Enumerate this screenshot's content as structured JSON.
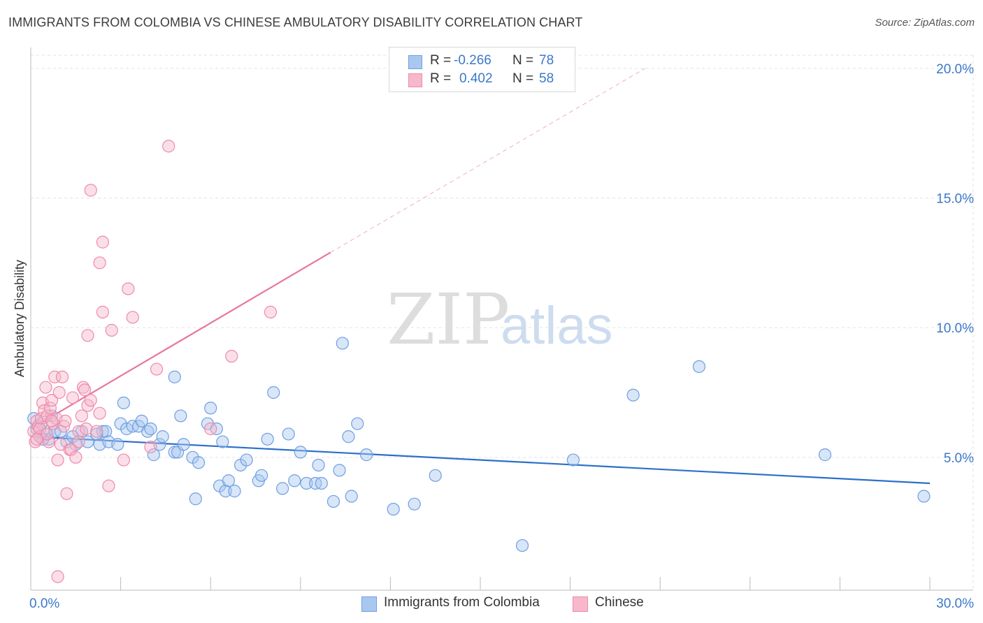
{
  "title": "IMMIGRANTS FROM COLOMBIA VS CHINESE AMBULATORY DISABILITY CORRELATION CHART",
  "source": "Source: ZipAtlas.com",
  "watermark": {
    "zip": "ZIP",
    "atlas": "atlas"
  },
  "legend": {
    "rows": [
      {
        "r_label": "R =",
        "r_value": "-0.266",
        "n_label": "N =",
        "n_value": "78",
        "color": "#a9c8f0",
        "stroke": "#6f9fe0"
      },
      {
        "r_label": "R =",
        "r_value": "0.402",
        "n_label": "N =",
        "n_value": "58",
        "color": "#f7b8cb",
        "stroke": "#ee8aa8"
      }
    ]
  },
  "bottom_legend": [
    {
      "label": "Immigrants from Colombia",
      "color": "#a9c8f0",
      "stroke": "#6f9fe0"
    },
    {
      "label": "Chinese",
      "color": "#f7b8cb",
      "stroke": "#ee8aa8"
    }
  ],
  "chart_data": {
    "type": "scatter",
    "xlabel": "",
    "ylabel": "Ambulatory Disability",
    "xlim": [
      0,
      30
    ],
    "ylim": [
      0,
      20.5
    ],
    "x_tick_labels": [
      {
        "value": 0,
        "label": "0.0%"
      },
      {
        "value": 30,
        "label": "30.0%"
      }
    ],
    "y_tick_labels": [
      {
        "value": 5,
        "label": "5.0%"
      },
      {
        "value": 10,
        "label": "10.0%"
      },
      {
        "value": 15,
        "label": "15.0%"
      },
      {
        "value": 20,
        "label": "20.0%"
      }
    ],
    "x_minor_ticks": [
      3,
      6,
      9,
      12,
      15,
      18,
      21,
      24,
      27,
      30
    ],
    "grid": true,
    "series": [
      {
        "name": "Immigrants from Colombia",
        "color": "#a9c8f0",
        "stroke": "#6f9fe0",
        "trend": {
          "x": [
            0,
            30
          ],
          "y": [
            5.8,
            4.0
          ],
          "color": "#2c6fca"
        },
        "points": [
          [
            0.1,
            6.5
          ],
          [
            0.2,
            6.1
          ],
          [
            0.3,
            5.8
          ],
          [
            0.35,
            6.3
          ],
          [
            0.5,
            5.9
          ],
          [
            0.6,
            5.7
          ],
          [
            0.7,
            6.6
          ],
          [
            0.8,
            6.0
          ],
          [
            1.0,
            6.0
          ],
          [
            1.2,
            5.6
          ],
          [
            1.5,
            5.5
          ],
          [
            1.7,
            6.0
          ],
          [
            1.9,
            5.6
          ],
          [
            2.3,
            5.5
          ],
          [
            2.4,
            6.0
          ],
          [
            2.5,
            6.0
          ],
          [
            2.6,
            5.6
          ],
          [
            2.9,
            5.5
          ],
          [
            3.0,
            6.3
          ],
          [
            3.2,
            6.1
          ],
          [
            3.1,
            7.1
          ],
          [
            3.4,
            6.2
          ],
          [
            3.6,
            6.2
          ],
          [
            3.7,
            6.4
          ],
          [
            3.9,
            6.0
          ],
          [
            4.0,
            6.1
          ],
          [
            4.1,
            5.1
          ],
          [
            4.3,
            5.5
          ],
          [
            4.4,
            5.8
          ],
          [
            4.8,
            5.2
          ],
          [
            4.9,
            5.2
          ],
          [
            5.1,
            5.5
          ],
          [
            4.8,
            8.1
          ],
          [
            5.0,
            6.6
          ],
          [
            5.4,
            5.0
          ],
          [
            5.5,
            3.4
          ],
          [
            5.6,
            4.8
          ],
          [
            5.9,
            6.3
          ],
          [
            6.0,
            6.9
          ],
          [
            6.2,
            6.1
          ],
          [
            6.3,
            3.9
          ],
          [
            6.4,
            5.6
          ],
          [
            6.5,
            3.7
          ],
          [
            6.6,
            4.1
          ],
          [
            6.8,
            3.7
          ],
          [
            7.0,
            4.7
          ],
          [
            7.2,
            4.9
          ],
          [
            7.6,
            4.1
          ],
          [
            7.7,
            4.3
          ],
          [
            7.9,
            5.7
          ],
          [
            8.1,
            7.5
          ],
          [
            8.4,
            3.8
          ],
          [
            8.6,
            5.9
          ],
          [
            8.8,
            4.1
          ],
          [
            9.0,
            5.2
          ],
          [
            9.2,
            4.0
          ],
          [
            9.5,
            4.0
          ],
          [
            9.6,
            4.7
          ],
          [
            9.7,
            4.0
          ],
          [
            10.1,
            3.3
          ],
          [
            10.3,
            4.5
          ],
          [
            10.4,
            9.4
          ],
          [
            10.6,
            5.8
          ],
          [
            10.7,
            3.5
          ],
          [
            10.9,
            6.3
          ],
          [
            11.2,
            5.1
          ],
          [
            12.1,
            3.0
          ],
          [
            12.8,
            3.2
          ],
          [
            13.5,
            4.3
          ],
          [
            16.4,
            1.6
          ],
          [
            18.1,
            4.9
          ],
          [
            20.1,
            7.4
          ],
          [
            22.3,
            8.5
          ],
          [
            26.5,
            5.1
          ],
          [
            29.8,
            3.5
          ],
          [
            0.4,
            5.7
          ],
          [
            1.4,
            5.8
          ],
          [
            2.2,
            5.9
          ]
        ]
      },
      {
        "name": "Chinese",
        "color": "#f7b8cb",
        "stroke": "#ee8aa8",
        "trend": {
          "x": [
            0,
            10
          ],
          "y": [
            6.1,
            12.9
          ],
          "color": "#e8769c",
          "dashed_to": {
            "x": 20.5,
            "y": 20.0
          }
        },
        "points": [
          [
            0.1,
            6.0
          ],
          [
            0.15,
            5.6
          ],
          [
            0.2,
            6.4
          ],
          [
            0.25,
            6.2
          ],
          [
            0.3,
            5.8
          ],
          [
            0.35,
            6.5
          ],
          [
            0.4,
            7.1
          ],
          [
            0.45,
            6.8
          ],
          [
            0.5,
            7.7
          ],
          [
            0.55,
            6.6
          ],
          [
            0.6,
            5.6
          ],
          [
            0.65,
            6.9
          ],
          [
            0.7,
            7.2
          ],
          [
            0.75,
            6.3
          ],
          [
            0.8,
            8.1
          ],
          [
            0.85,
            6.5
          ],
          [
            0.9,
            4.9
          ],
          [
            0.95,
            7.5
          ],
          [
            1.0,
            5.5
          ],
          [
            1.05,
            8.1
          ],
          [
            1.1,
            6.2
          ],
          [
            1.2,
            3.6
          ],
          [
            1.3,
            5.3
          ],
          [
            1.35,
            5.3
          ],
          [
            1.4,
            7.3
          ],
          [
            1.5,
            5.0
          ],
          [
            1.6,
            6.0
          ],
          [
            1.7,
            6.6
          ],
          [
            1.75,
            7.7
          ],
          [
            1.8,
            7.6
          ],
          [
            1.85,
            6.1
          ],
          [
            1.9,
            7.0
          ],
          [
            2.0,
            7.2
          ],
          [
            1.9,
            9.7
          ],
          [
            2.0,
            15.3
          ],
          [
            2.2,
            6.0
          ],
          [
            2.3,
            6.7
          ],
          [
            2.3,
            12.5
          ],
          [
            2.4,
            13.3
          ],
          [
            2.4,
            10.6
          ],
          [
            2.6,
            3.9
          ],
          [
            2.7,
            9.9
          ],
          [
            3.1,
            4.9
          ],
          [
            3.25,
            11.5
          ],
          [
            3.4,
            10.4
          ],
          [
            4.0,
            5.4
          ],
          [
            4.2,
            8.4
          ],
          [
            4.6,
            17.0
          ],
          [
            6.0,
            6.1
          ],
          [
            6.7,
            8.9
          ],
          [
            8.0,
            10.6
          ],
          [
            0.9,
            0.4
          ],
          [
            0.3,
            6.1
          ],
          [
            0.55,
            5.9
          ],
          [
            1.15,
            6.4
          ],
          [
            0.7,
            6.4
          ],
          [
            0.2,
            5.7
          ],
          [
            1.6,
            5.6
          ]
        ]
      }
    ]
  }
}
